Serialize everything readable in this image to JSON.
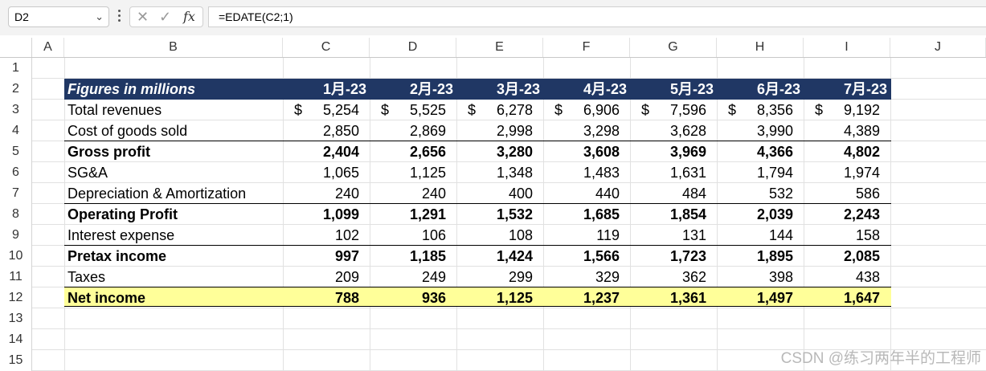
{
  "formula_bar": {
    "name_box": "D2",
    "formula": "=EDATE(C2;1)",
    "cancel_icon": "cancel-x-icon",
    "enter_icon": "checkmark-icon",
    "fx_label": "fx"
  },
  "columns": [
    "A",
    "B",
    "C",
    "D",
    "E",
    "F",
    "G",
    "H",
    "I",
    "J"
  ],
  "rows": [
    "1",
    "2",
    "3",
    "4",
    "5",
    "6",
    "7",
    "8",
    "9",
    "10",
    "11",
    "12",
    "13",
    "14",
    "15"
  ],
  "sheet": {
    "header_label": "Figures in millions",
    "months": [
      "1月-23",
      "2月-23",
      "3月-23",
      "4月-23",
      "5月-23",
      "6月-23",
      "7月-23"
    ],
    "currency_symbol": "$",
    "lines": [
      {
        "label": "Total revenues",
        "values": [
          "5,254",
          "5,525",
          "6,278",
          "6,906",
          "7,596",
          "8,356",
          "9,192"
        ],
        "bold": false
      },
      {
        "label": "Cost of goods sold",
        "values": [
          "2,850",
          "2,869",
          "2,998",
          "3,298",
          "3,628",
          "3,990",
          "4,389"
        ],
        "bold": false
      },
      {
        "label": "Gross profit",
        "values": [
          "2,404",
          "2,656",
          "3,280",
          "3,608",
          "3,969",
          "4,366",
          "4,802"
        ],
        "bold": true
      },
      {
        "label": "SG&A",
        "values": [
          "1,065",
          "1,125",
          "1,348",
          "1,483",
          "1,631",
          "1,794",
          "1,974"
        ],
        "bold": false
      },
      {
        "label": "Depreciation & Amortization",
        "values": [
          "240",
          "240",
          "400",
          "440",
          "484",
          "532",
          "586"
        ],
        "bold": false
      },
      {
        "label": "Operating Profit",
        "values": [
          "1,099",
          "1,291",
          "1,532",
          "1,685",
          "1,854",
          "2,039",
          "2,243"
        ],
        "bold": true
      },
      {
        "label": "Interest expense",
        "values": [
          "102",
          "106",
          "108",
          "119",
          "131",
          "144",
          "158"
        ],
        "bold": false
      },
      {
        "label": "Pretax income",
        "values": [
          "997",
          "1,185",
          "1,424",
          "1,566",
          "1,723",
          "1,895",
          "2,085"
        ],
        "bold": true
      },
      {
        "label": "Taxes",
        "values": [
          "209",
          "249",
          "299",
          "329",
          "362",
          "398",
          "438"
        ],
        "bold": false
      },
      {
        "label": "Net income",
        "values": [
          "788",
          "936",
          "1,125",
          "1,237",
          "1,361",
          "1,497",
          "1,647"
        ],
        "bold": true
      }
    ]
  },
  "colors": {
    "header_fill": "#203764",
    "net_income_fill": "#ffff99",
    "gridline": "#e1e1e1"
  },
  "watermark": "CSDN @练习两年半的工程师"
}
